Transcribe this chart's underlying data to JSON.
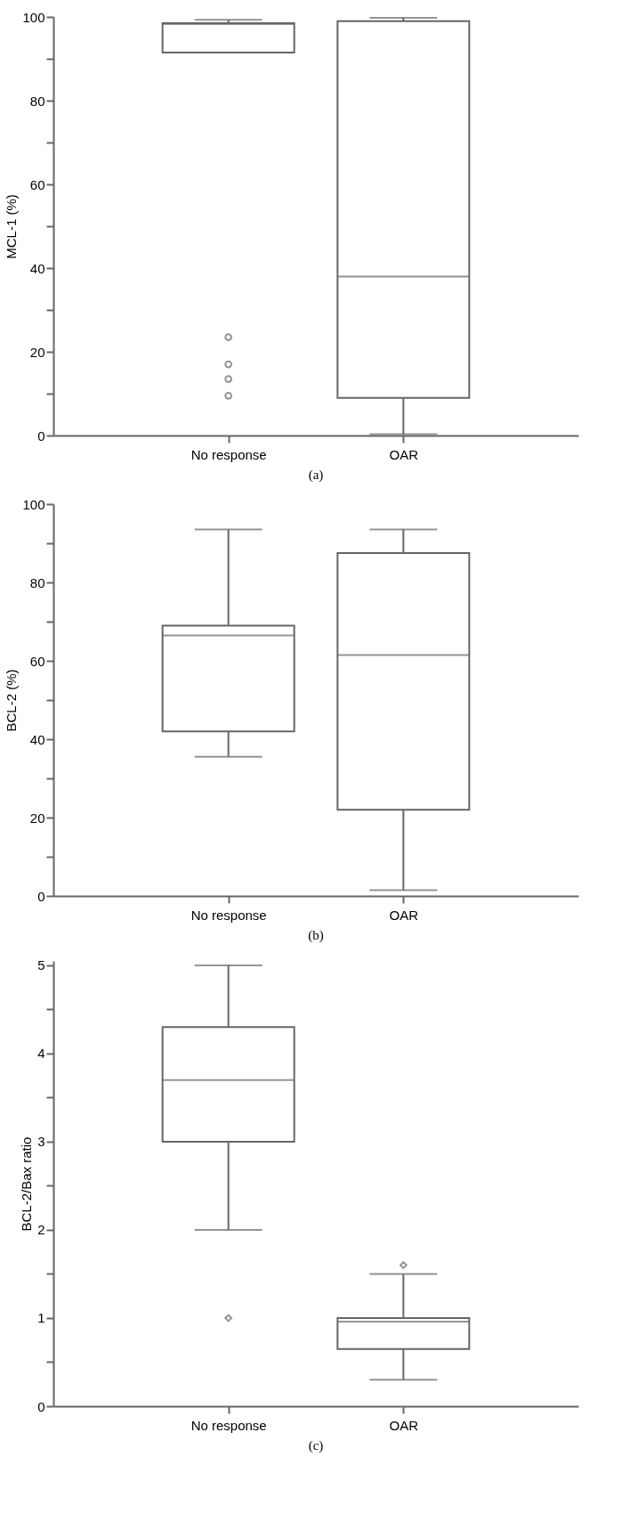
{
  "chart_data": [
    {
      "type": "box",
      "ylabel": "MCL-1 (%)",
      "categories": [
        "No response",
        "OAR"
      ],
      "marker": "circle",
      "annotations": [
        "(a)"
      ],
      "ylim": [
        0,
        100
      ],
      "yticks": [
        0,
        {
          "value": 10,
          "label": null
        },
        20,
        {
          "value": 30,
          "label": null
        },
        40,
        {
          "value": 50,
          "label": null
        },
        60,
        {
          "value": 70,
          "label": null
        },
        80,
        {
          "value": 90,
          "label": null
        },
        100
      ],
      "series": [
        {
          "color": "#666666",
          "boxes": [
            {
              "low": 91.5,
              "q1": 91.5,
              "median": 98.3,
              "q3": 98.5,
              "high": 99.3,
              "outliers": [
                23.5,
                17,
                13.5,
                9.5
              ]
            },
            {
              "low": 0.3,
              "q1": 9,
              "median": 38,
              "q3": 99,
              "high": 99.8
            }
          ]
        }
      ]
    },
    {
      "type": "box",
      "ylabel": "BCL-2 (%)",
      "categories": [
        "No response",
        "OAR"
      ],
      "annotations": [
        "(b)"
      ],
      "ylim": [
        0,
        100
      ],
      "yticks": [
        0,
        {
          "value": 10,
          "label": null
        },
        20,
        {
          "value": 30,
          "label": null
        },
        40,
        {
          "value": 50,
          "label": null
        },
        60,
        {
          "value": 70,
          "label": null
        },
        80,
        {
          "value": 90,
          "label": null
        },
        100
      ],
      "series": [
        {
          "color": "#666666",
          "boxes": [
            {
              "low": 35.5,
              "q1": 42,
              "median": 66.5,
              "q3": 69,
              "high": 93.5
            },
            {
              "low": 1.5,
              "q1": 22,
              "median": 61.5,
              "q3": 87.5,
              "high": 93.5
            }
          ]
        }
      ]
    },
    {
      "type": "box",
      "ylabel": "BCL-2/Bax ratio",
      "categories": [
        "No response",
        "OAR"
      ],
      "marker": "diamond",
      "annotations": [
        "(c)"
      ],
      "ylim": [
        0,
        5.05
      ],
      "yticks": [
        0,
        {
          "value": 0.5,
          "label": null
        },
        1,
        {
          "value": 1.5,
          "label": null
        },
        2,
        {
          "value": 2.5,
          "label": null
        },
        3,
        {
          "value": 3.5,
          "label": null
        },
        4,
        {
          "value": 4.5,
          "label": null
        },
        5
      ],
      "series": [
        {
          "color": "#666666",
          "boxes": [
            {
              "low": 2,
              "q1": 3,
              "median": 3.7,
              "q3": 4.3,
              "high": 5,
              "outliers": [
                1
              ]
            },
            {
              "low": 0.3,
              "q1": 0.65,
              "median": 0.96,
              "q3": 1.0,
              "high": 1.5,
              "outliers": [
                1.6
              ]
            }
          ]
        }
      ]
    }
  ]
}
